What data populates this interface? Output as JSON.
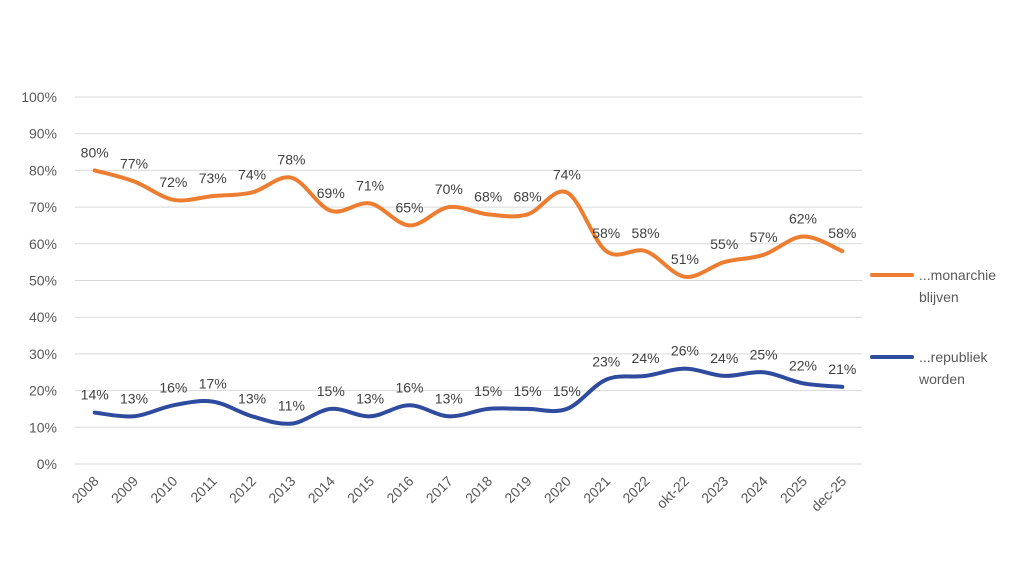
{
  "chart_data": {
    "type": "line",
    "title": "",
    "xlabel": "",
    "ylabel": "",
    "ylim": [
      0,
      100
    ],
    "yticks": [
      "0%",
      "10%",
      "20%",
      "30%",
      "40%",
      "50%",
      "60%",
      "70%",
      "80%",
      "90%",
      "100%"
    ],
    "categories": [
      "2008",
      "2009",
      "2010",
      "2011",
      "2012",
      "2013",
      "2014",
      "2015",
      "2016",
      "2017",
      "2018",
      "2019",
      "2020",
      "2021",
      "2022",
      "okt-22",
      "2023",
      "2024",
      "2025",
      "dec-25"
    ],
    "series": [
      {
        "name": "...monarchie blijven",
        "legend_lines": [
          "...monarchie",
          "blijven"
        ],
        "color": "#ED7D31",
        "values": [
          80,
          77,
          72,
          73,
          74,
          78,
          69,
          71,
          65,
          70,
          68,
          68,
          74,
          58,
          58,
          51,
          55,
          57,
          62,
          58
        ],
        "labels": [
          "80%",
          "77%",
          "72%",
          "73%",
          "74%",
          "78%",
          "69%",
          "71%",
          "65%",
          "70%",
          "68%",
          "68%",
          "74%",
          "58%",
          "58%",
          "51%",
          "55%",
          "57%",
          "62%",
          "58%"
        ]
      },
      {
        "name": "...republiek worden",
        "legend_lines": [
          "...republiek",
          "worden"
        ],
        "color": "#2E4B9E",
        "values": [
          14,
          13,
          16,
          17,
          13,
          11,
          15,
          13,
          16,
          13,
          15,
          15,
          15,
          23,
          24,
          26,
          24,
          25,
          22,
          21
        ],
        "labels": [
          "14%",
          "13%",
          "16%",
          "17%",
          "13%",
          "11%",
          "15%",
          "13%",
          "16%",
          "13%",
          "15%",
          "15%",
          "15%",
          "23%",
          "24%",
          "26%",
          "24%",
          "25%",
          "22%",
          "21%"
        ]
      }
    ],
    "grid": true,
    "legend": "right"
  }
}
